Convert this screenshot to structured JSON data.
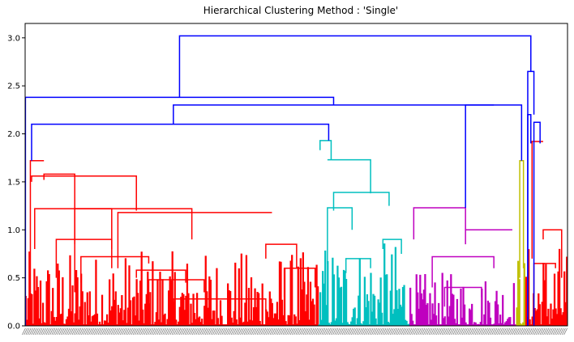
{
  "chart_data": {
    "type": "dendrogram",
    "title": "Hierarchical Clustering Method : 'Single'",
    "xlabel": "",
    "ylabel": "",
    "ylim": [
      0,
      3.15
    ],
    "yticks": [
      0.0,
      0.5,
      1.0,
      1.5,
      2.0,
      2.5,
      3.0
    ],
    "ytick_labels": [
      "0.0",
      "0.5",
      "1.0",
      "1.5",
      "2.0",
      "2.5",
      "3.0"
    ],
    "grid": false,
    "legend": "none",
    "leaf_count": 880,
    "colors": {
      "above_threshold": "#0000ff",
      "cluster_red": "#ff0000",
      "cluster_cyan": "#00bfbf",
      "cluster_magenta": "#bf00bf",
      "cluster_olive": "#bfbf00"
    },
    "clusters": [
      {
        "color": "cluster_red",
        "leaf_range": [
          0,
          476
        ],
        "height": 1.72
      },
      {
        "color": "cluster_cyan",
        "leaf_range": [
          476,
          624
        ],
        "height": 1.93
      },
      {
        "color": "cluster_magenta",
        "leaf_range": [
          624,
          797
        ],
        "height": 1.23
      },
      {
        "color": "cluster_olive",
        "leaf_range": [
          797,
          812
        ],
        "height": 1.72
      },
      {
        "color": "cluster_red",
        "leaf_range": [
          812,
          880
        ],
        "height": 1.92
      }
    ],
    "links": [
      {
        "color": "cluster_red",
        "x1": 8,
        "x2": 30,
        "h1": 0,
        "h2": 1.72,
        "h": 1.72
      },
      {
        "color": "cluster_red",
        "x1": 30,
        "x2": 80,
        "h1": 1.52,
        "h2": 0.35,
        "h": 1.58
      },
      {
        "color": "cluster_red",
        "x1": 10,
        "x2": 180,
        "h1": 1.5,
        "h2": 1.2,
        "h": 1.56
      },
      {
        "color": "cluster_red",
        "x1": 15,
        "x2": 140,
        "h1": 0.8,
        "h2": 0.6,
        "h": 1.22
      },
      {
        "color": "cluster_red",
        "x1": 80,
        "x2": 270,
        "h1": 0.85,
        "h2": 0.9,
        "h": 1.22
      },
      {
        "color": "cluster_red",
        "x1": 150,
        "x2": 400,
        "h1": 0.6,
        "h2": 1.18,
        "h": 1.18
      },
      {
        "color": "cluster_red",
        "x1": 50,
        "x2": 140,
        "h1": 0.5,
        "h2": 0.8,
        "h": 0.9
      },
      {
        "color": "cluster_red",
        "x1": 90,
        "x2": 200,
        "h1": 0.45,
        "h2": 0.65,
        "h": 0.72
      },
      {
        "color": "cluster_red",
        "x1": 180,
        "x2": 260,
        "h1": 0.5,
        "h2": 0.45,
        "h": 0.58
      },
      {
        "color": "cluster_red",
        "x1": 200,
        "x2": 290,
        "h1": 0.2,
        "h2": 0.35,
        "h": 0.48
      },
      {
        "color": "cluster_red",
        "x1": 240,
        "x2": 390,
        "h1": 0.2,
        "h2": 0.15,
        "h": 0.28
      },
      {
        "color": "cluster_red",
        "x1": 390,
        "x2": 440,
        "h1": 0.7,
        "h2": 0.6,
        "h": 0.85
      },
      {
        "color": "cluster_red",
        "x1": 420,
        "x2": 470,
        "h1": 0.3,
        "h2": 0.4,
        "h": 0.6
      },
      {
        "color": "cluster_cyan",
        "x1": 478,
        "x2": 496,
        "h1": 1.83,
        "h2": 1.73,
        "h": 1.93
      },
      {
        "color": "cluster_cyan",
        "x1": 490,
        "x2": 560,
        "h1": 1.73,
        "h2": 1.38,
        "h": 1.73
      },
      {
        "color": "cluster_cyan",
        "x1": 500,
        "x2": 590,
        "h1": 1.2,
        "h2": 1.25,
        "h": 1.39
      },
      {
        "color": "cluster_cyan",
        "x1": 490,
        "x2": 530,
        "h1": 0.65,
        "h2": 1.0,
        "h": 1.23
      },
      {
        "color": "cluster_cyan",
        "x1": 580,
        "x2": 610,
        "h1": 0.8,
        "h2": 0.75,
        "h": 0.9
      },
      {
        "color": "cluster_cyan",
        "x1": 520,
        "x2": 560,
        "h1": 0.55,
        "h2": 0.6,
        "h": 0.7
      },
      {
        "color": "cluster_magenta",
        "x1": 630,
        "x2": 714,
        "h1": 0.9,
        "h2": 1.0,
        "h": 1.23
      },
      {
        "color": "cluster_magenta",
        "x1": 714,
        "x2": 790,
        "h1": 0.85,
        "h2": 1.0,
        "h": 1.0
      },
      {
        "color": "cluster_magenta",
        "x1": 660,
        "x2": 760,
        "h1": 0.4,
        "h2": 0.6,
        "h": 0.72
      },
      {
        "color": "cluster_magenta",
        "x1": 680,
        "x2": 740,
        "h1": 0.2,
        "h2": 0.3,
        "h": 0.4
      },
      {
        "color": "cluster_olive",
        "x1": 802,
        "x2": 808,
        "h1": 0.5,
        "h2": 0.6,
        "h": 1.72
      },
      {
        "color": "cluster_red",
        "x1": 822,
        "x2": 840,
        "h1": 0.7,
        "h2": 1.92,
        "h": 1.92
      },
      {
        "color": "cluster_red",
        "x1": 840,
        "x2": 870,
        "h1": 0.9,
        "h2": 0.5,
        "h": 1.0
      },
      {
        "color": "cluster_red",
        "x1": 825,
        "x2": 860,
        "h1": 0.3,
        "h2": 0.6,
        "h": 0.65
      },
      {
        "color": "above_threshold",
        "x1": 10,
        "x2": 492,
        "h1": 1.72,
        "h2": 1.93,
        "h": 2.1
      },
      {
        "color": "above_threshold",
        "x1": 714,
        "x2": 805,
        "h1": 1.23,
        "h2": 1.72,
        "h": 2.3
      },
      {
        "color": "above_threshold",
        "x1": 240,
        "x2": 760,
        "h1": 2.1,
        "h2": 2.3,
        "h": 2.3
      },
      {
        "color": "above_threshold",
        "x1": 0,
        "x2": 500,
        "h1": 0,
        "h2": 2.3,
        "h": 2.38
      },
      {
        "color": "above_threshold",
        "x1": 815,
        "x2": 825,
        "h1": 0,
        "h2": 2.2,
        "h": 2.65
      },
      {
        "color": "above_threshold",
        "x1": 815,
        "x2": 820,
        "h1": 0,
        "h2": 1.9,
        "h": 2.2
      },
      {
        "color": "above_threshold",
        "x1": 825,
        "x2": 835,
        "h1": 0,
        "h2": 1.9,
        "h": 2.12
      },
      {
        "color": "above_threshold",
        "x1": 250,
        "x2": 820,
        "h1": 2.38,
        "h2": 2.65,
        "h": 3.02
      }
    ]
  }
}
